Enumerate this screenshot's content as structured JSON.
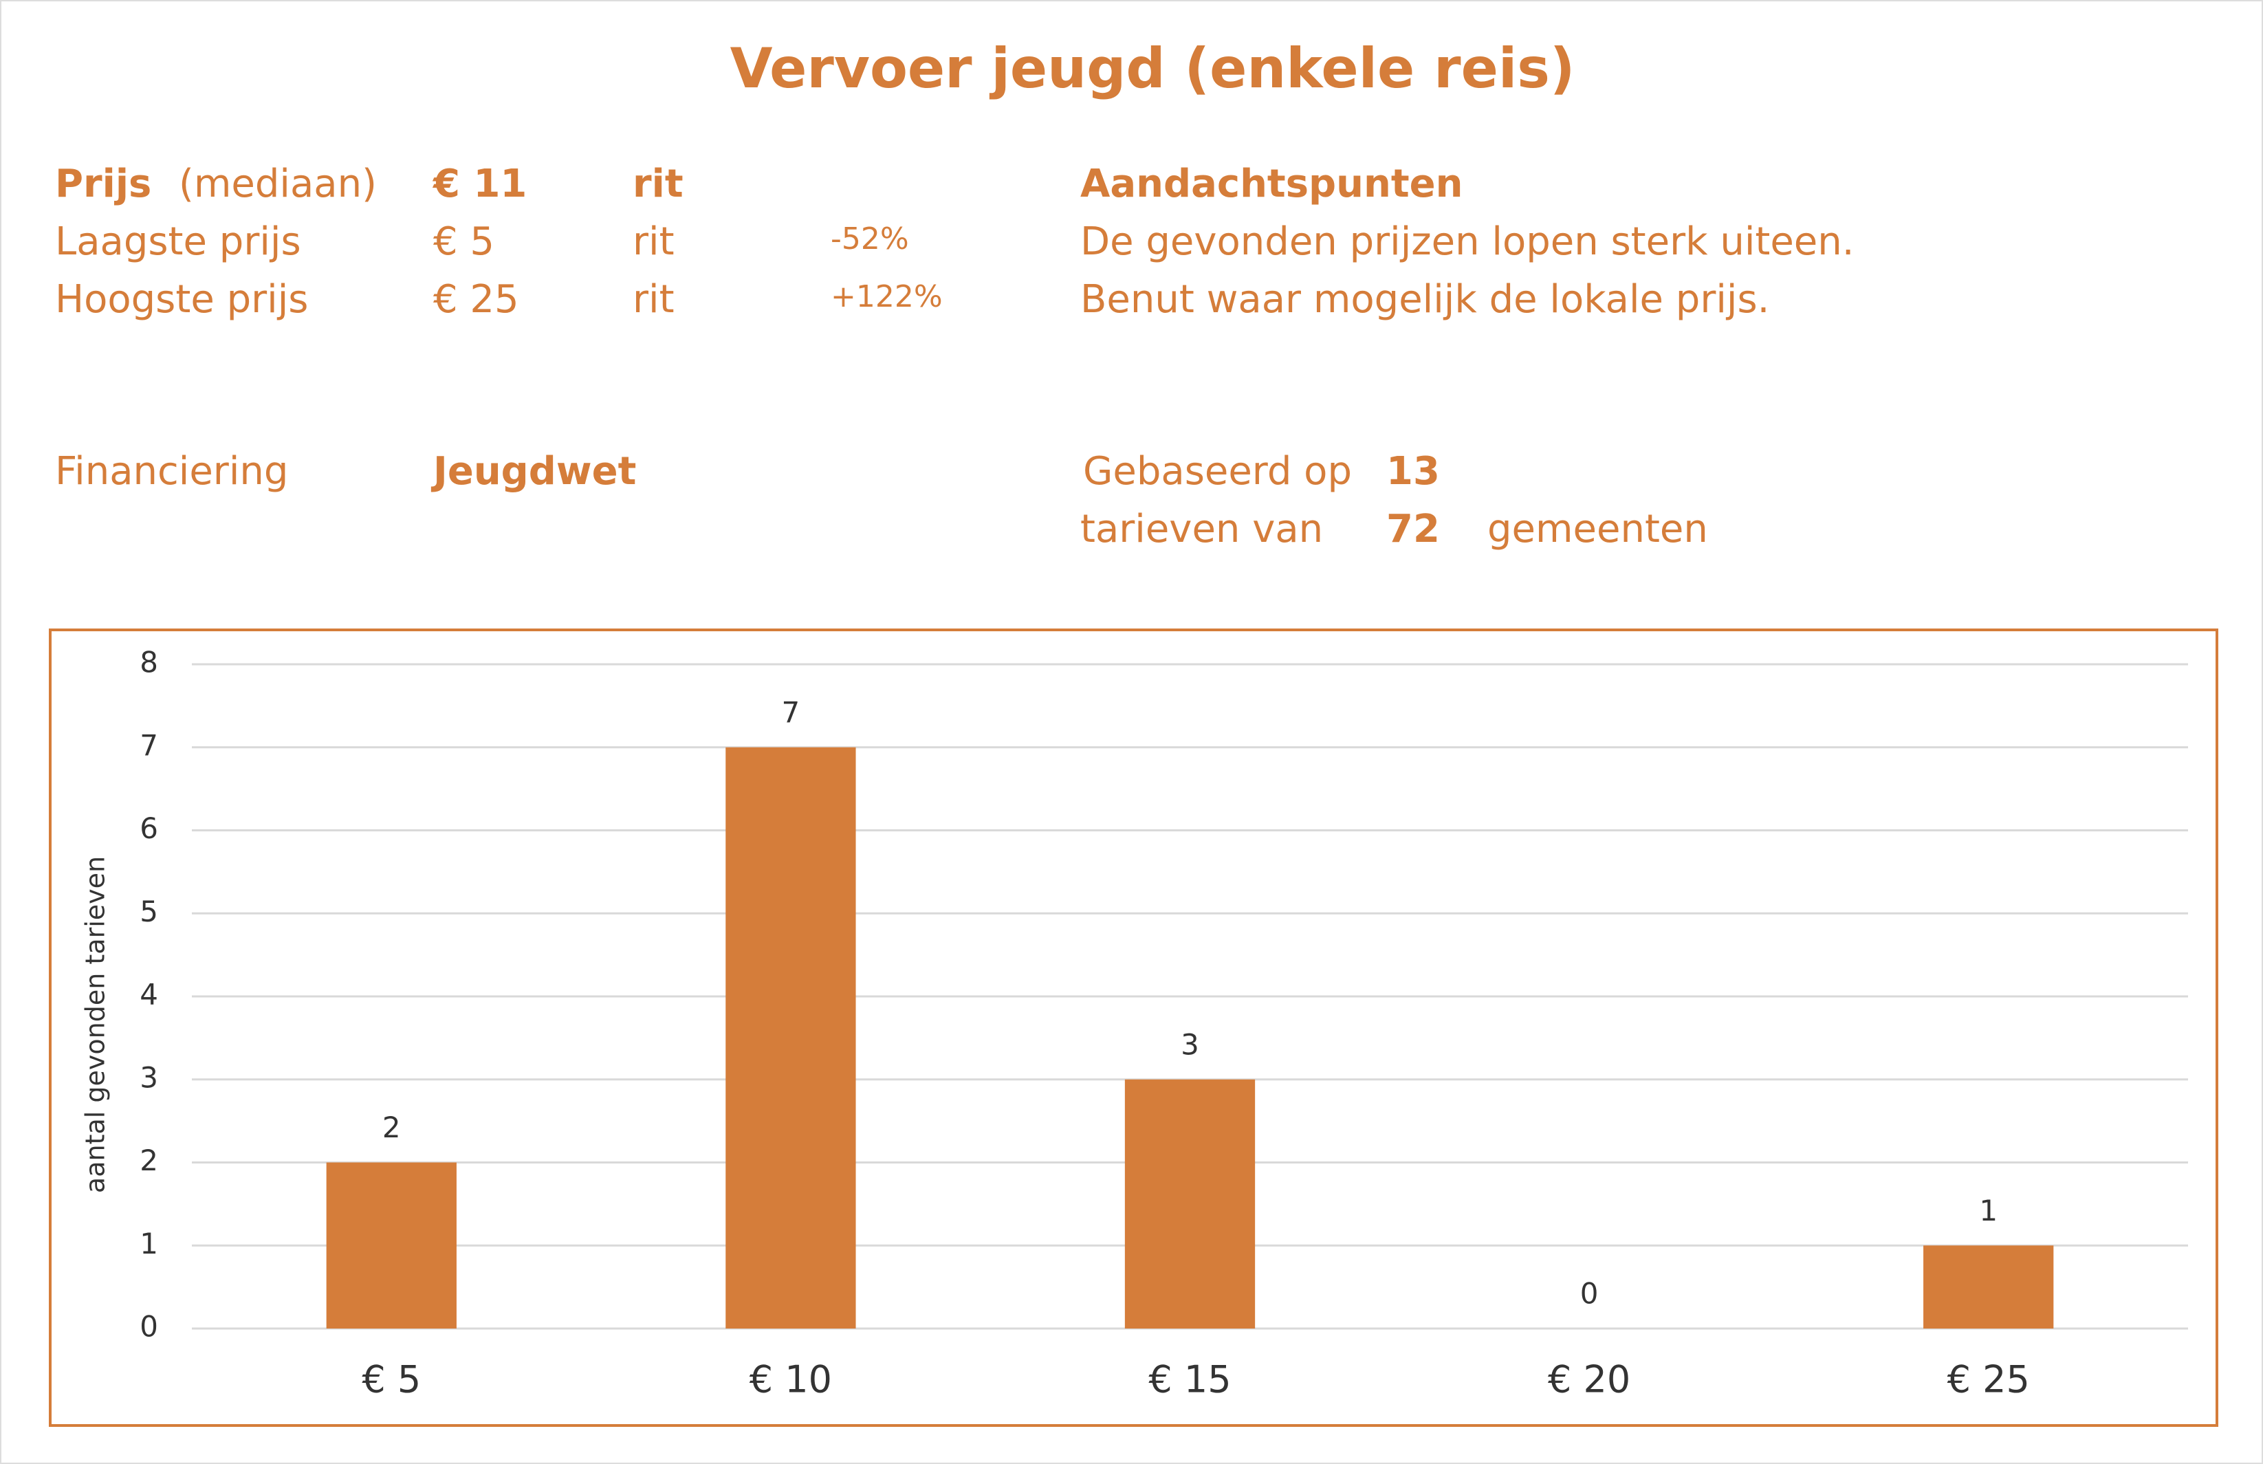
{
  "title": "Vervoer jeugd (enkele reis)",
  "prices": {
    "median": {
      "label": "Prijs",
      "note": "(mediaan)",
      "price": "€ 11",
      "unit": "rit"
    },
    "lowest": {
      "label": "Laagste prijs",
      "price": "€ 5",
      "unit": "rit",
      "change": "-52%"
    },
    "highest": {
      "label": "Hoogste prijs",
      "price": "€ 25",
      "unit": "rit",
      "change": "+122%"
    }
  },
  "attention": {
    "heading": "Aandachtspunten",
    "lines": [
      "De gevonden prijzen lopen sterk uiteen.",
      "Benut waar mogelijk de lokale prijs."
    ]
  },
  "financing": {
    "label": "Financiering",
    "value": "Jeugdwet"
  },
  "basis": {
    "based_on": "Gebaseerd op",
    "tariffs": "13",
    "tariffs_of": "tarieven van",
    "municipalities": "72",
    "municipalities_label": "gemeenten"
  },
  "chart_data": {
    "type": "bar",
    "y_label": "aantal gevonden tarieven",
    "categories": [
      "€ 5",
      "€ 10",
      "€ 15",
      "€ 20",
      "€ 25"
    ],
    "values": [
      2,
      7,
      3,
      0,
      1
    ],
    "color": "#d57d3a",
    "ylim": [
      0,
      8
    ],
    "yticks": [
      0,
      1,
      2,
      3,
      4,
      5,
      6,
      7,
      8
    ],
    "grid": true
  }
}
